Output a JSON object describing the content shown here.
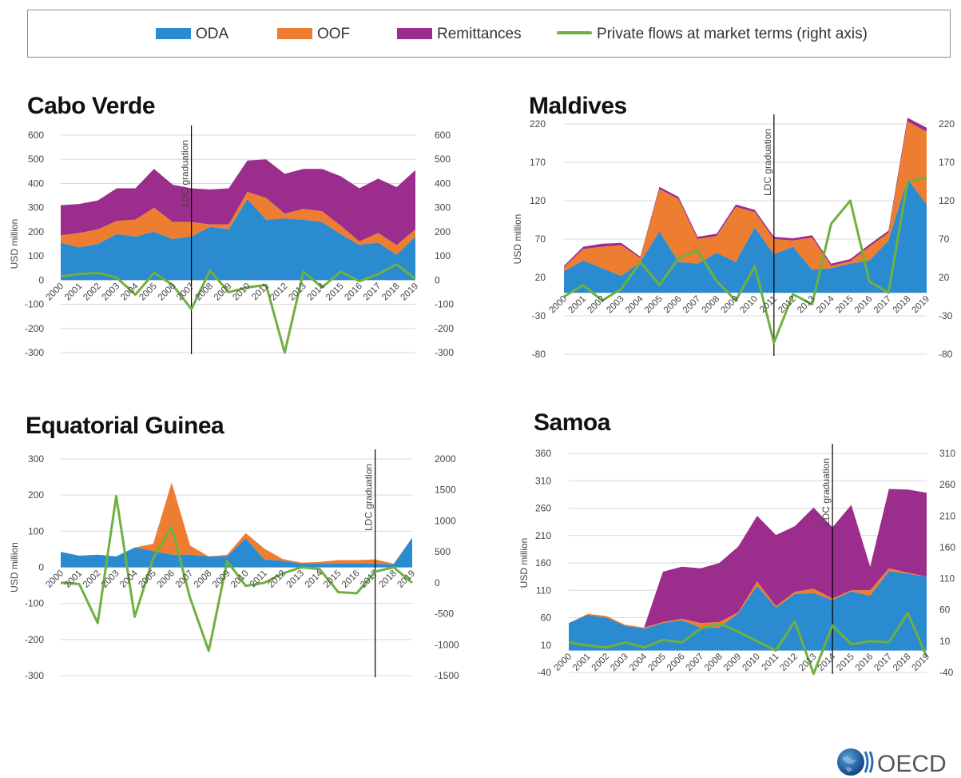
{
  "legend": {
    "items": [
      {
        "label": "ODA",
        "color": "#2a8bd0",
        "kind": "area"
      },
      {
        "label": "OOF",
        "color": "#ed7d31",
        "kind": "area"
      },
      {
        "label": "Remittances",
        "color": "#9b2d8c",
        "kind": "area"
      },
      {
        "label": "Private flows at market terms (right axis)",
        "color": "#6fb03f",
        "kind": "line"
      }
    ]
  },
  "colors": {
    "oda": "#2a8bd0",
    "oof": "#ed7d31",
    "remit": "#9b2d8c",
    "private": "#6fb03f",
    "grid": "#d9d9d9",
    "axis": "#444444"
  },
  "ldc_label": "LDC graduation",
  "ylabel": "USD million",
  "logo_text": "OECD",
  "chart_data": [
    {
      "type": "area",
      "title": "Cabo Verde",
      "ylim": [
        -300,
        600
      ],
      "yticks": [
        -300,
        -200,
        -100,
        0,
        100,
        200,
        300,
        400,
        500,
        600
      ],
      "y2lim": [
        -300,
        600
      ],
      "y2ticks": [
        -300,
        -200,
        -100,
        0,
        100,
        200,
        300,
        400,
        500,
        600
      ],
      "ldc_year": "2007",
      "x": [
        "2000",
        "2001",
        "2002",
        "2003",
        "2004",
        "2005",
        "2006",
        "2007",
        "2008",
        "2009",
        "2010",
        "2011",
        "2012",
        "2013",
        "2014",
        "2015",
        "2016",
        "2017",
        "2018",
        "2019"
      ],
      "series": [
        {
          "name": "ODA",
          "values": [
            155,
            135,
            150,
            190,
            180,
            200,
            170,
            180,
            220,
            210,
            335,
            250,
            255,
            250,
            240,
            190,
            145,
            155,
            105,
            180
          ]
        },
        {
          "name": "OOF",
          "values": [
            30,
            60,
            60,
            55,
            70,
            100,
            70,
            60,
            10,
            20,
            30,
            90,
            20,
            45,
            45,
            35,
            15,
            40,
            40,
            30
          ]
        },
        {
          "name": "Remittances",
          "values": [
            125,
            120,
            120,
            135,
            130,
            160,
            155,
            140,
            145,
            150,
            130,
            160,
            165,
            165,
            175,
            205,
            220,
            225,
            240,
            245
          ]
        },
        {
          "name": "Private flows at market terms (right axis)",
          "values": [
            15,
            25,
            30,
            10,
            -60,
            30,
            -20,
            -120,
            40,
            -50,
            -30,
            -20,
            -300,
            35,
            -30,
            35,
            -5,
            25,
            65,
            5
          ]
        }
      ]
    },
    {
      "type": "area",
      "title": "Maldives",
      "ylim": [
        -80,
        220
      ],
      "yticks": [
        -80,
        -30,
        20,
        70,
        120,
        170,
        220
      ],
      "y2lim": [
        -80,
        220
      ],
      "y2ticks": [
        -80,
        -30,
        20,
        70,
        120,
        170,
        220
      ],
      "ldc_year": "2011",
      "x": [
        "2000",
        "2001",
        "2002",
        "2003",
        "2004",
        "2005",
        "2006",
        "2007",
        "2008",
        "2009",
        "2010",
        "2011",
        "2012",
        "2013",
        "2014",
        "2015",
        "2016",
        "2017",
        "2018",
        "2019"
      ],
      "series": [
        {
          "name": "ODA",
          "values": [
            28,
            42,
            32,
            22,
            40,
            80,
            40,
            38,
            52,
            40,
            85,
            50,
            60,
            30,
            32,
            38,
            42,
            68,
            148,
            115
          ]
        },
        {
          "name": "OOF",
          "values": [
            5,
            15,
            28,
            40,
            5,
            55,
            82,
            32,
            22,
            72,
            20,
            20,
            8,
            42,
            3,
            3,
            18,
            10,
            75,
            95
          ]
        },
        {
          "name": "Remittances",
          "values": [
            2,
            3,
            4,
            3,
            2,
            3,
            3,
            3,
            3,
            3,
            3,
            3,
            3,
            3,
            3,
            3,
            3,
            3,
            5,
            5
          ]
        },
        {
          "name": "Private flows at market terms (right axis)",
          "values": [
            -5,
            10,
            -10,
            5,
            40,
            10,
            45,
            55,
            15,
            -10,
            35,
            -65,
            -2,
            -15,
            90,
            120,
            15,
            0,
            145,
            150
          ]
        }
      ]
    },
    {
      "type": "area",
      "title": "Equatorial Guinea",
      "ylim": [
        -300,
        300
      ],
      "yticks": [
        -300,
        -200,
        -100,
        0,
        100,
        200,
        300
      ],
      "y2lim": [
        -1500,
        2000
      ],
      "y2ticks": [
        -1500,
        -1000,
        -500,
        0,
        500,
        1000,
        1500,
        2000
      ],
      "ldc_year": "2017",
      "x": [
        "2000",
        "2001",
        "2002",
        "2003",
        "2004",
        "2005",
        "2006",
        "2007",
        "2008",
        "2009",
        "2010",
        "2011",
        "2012",
        "2013",
        "2014",
        "2015",
        "2016",
        "2017",
        "2018",
        "2019"
      ],
      "series": [
        {
          "name": "ODA",
          "values": [
            43,
            32,
            35,
            30,
            55,
            45,
            35,
            35,
            30,
            30,
            80,
            22,
            18,
            10,
            10,
            10,
            10,
            10,
            8,
            82
          ]
        },
        {
          "name": "OOF",
          "values": [
            0,
            0,
            0,
            0,
            0,
            20,
            200,
            25,
            0,
            5,
            15,
            30,
            5,
            3,
            5,
            10,
            10,
            12,
            2,
            0
          ]
        },
        {
          "name": "Remittances",
          "values": [
            0,
            0,
            0,
            0,
            0,
            0,
            0,
            0,
            0,
            0,
            0,
            0,
            0,
            0,
            0,
            0,
            0,
            0,
            0,
            0
          ]
        },
        {
          "name": "Private flows at market terms (right axis)",
          "values": [
            0,
            -20,
            -650,
            1400,
            -550,
            400,
            900,
            -250,
            -1100,
            350,
            -50,
            0,
            150,
            250,
            220,
            -150,
            -170,
            180,
            250,
            0
          ]
        }
      ]
    },
    {
      "type": "area",
      "title": "Samoa",
      "ylim": [
        -40,
        360
      ],
      "yticks": [
        -40,
        10,
        60,
        110,
        160,
        210,
        260,
        310,
        360
      ],
      "y2lim": [
        -40,
        310
      ],
      "y2ticks": [
        -40,
        10,
        60,
        110,
        160,
        210,
        260,
        310
      ],
      "ldc_year": "2014",
      "x": [
        "2000",
        "2001",
        "2002",
        "2003",
        "2004",
        "2005",
        "2006",
        "2007",
        "2008",
        "2009",
        "2010",
        "2011",
        "2012",
        "2013",
        "2014",
        "2015",
        "2016",
        "2017",
        "2018",
        "2019"
      ],
      "series": [
        {
          "name": "ODA",
          "values": [
            50,
            65,
            60,
            45,
            40,
            50,
            55,
            42,
            42,
            68,
            118,
            78,
            103,
            105,
            92,
            108,
            100,
            145,
            140,
            135
          ]
        },
        {
          "name": "OOF",
          "values": [
            0,
            2,
            3,
            2,
            2,
            2,
            3,
            8,
            10,
            2,
            8,
            3,
            4,
            8,
            3,
            2,
            10,
            5,
            2,
            0
          ]
        },
        {
          "name": "Remittances",
          "values": [
            0,
            0,
            0,
            0,
            0,
            92,
            95,
            100,
            108,
            120,
            120,
            130,
            120,
            148,
            130,
            156,
            43,
            145,
            152,
            153
          ]
        },
        {
          "name": "Private flows at market terms (right axis)",
          "values": [
            8,
            3,
            0,
            8,
            0,
            12,
            8,
            30,
            38,
            25,
            10,
            -5,
            42,
            -42,
            35,
            5,
            10,
            8,
            55,
            -15
          ]
        }
      ]
    }
  ]
}
